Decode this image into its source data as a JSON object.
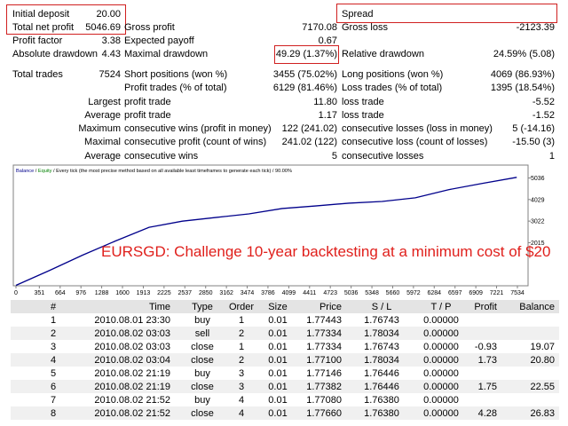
{
  "stats": [
    [
      {
        "label": "Initial deposit",
        "value": "20.00"
      },
      null,
      {
        "label": "Spread"
      }
    ],
    [
      {
        "label": "Total net profit",
        "value": "5046.69"
      },
      {
        "label": "Gross profit",
        "value": "7170.08"
      },
      {
        "label": "Gross loss",
        "value": "-2123.39"
      }
    ],
    [
      {
        "label": "Profit factor",
        "value": "3.38"
      },
      {
        "label": "Expected payoff",
        "value": "0.67"
      },
      null
    ],
    [
      {
        "label": "Absolute drawdown",
        "value": "4.43"
      },
      {
        "label": "Maximal drawdown",
        "value": "49.29 (1.37%)"
      },
      {
        "label": "Relative drawdown",
        "value": "24.59% (5.08)"
      }
    ],
    [
      {
        "label": "Total trades",
        "value": "7524"
      },
      {
        "label": "Short positions (won %)",
        "value": "3455 (75.02%)"
      },
      {
        "label": "Long positions (won %)",
        "value": "4069 (86.93%)"
      }
    ],
    [
      null,
      {
        "label": "Profit trades (% of total)",
        "value": "6129 (81.46%)"
      },
      {
        "label": "Loss trades (% of total)",
        "value": "1395 (18.54%)"
      }
    ],
    [
      {
        "label": "Largest"
      },
      {
        "label": "profit trade",
        "value": "11.80"
      },
      {
        "label": "loss trade",
        "value": "-5.52"
      }
    ],
    [
      {
        "label": "Average"
      },
      {
        "label": "profit trade",
        "value": "1.17"
      },
      {
        "label": "loss trade",
        "value": "-1.52"
      }
    ],
    [
      {
        "label": "Maximum"
      },
      {
        "label": "consecutive wins (profit in money)",
        "value": "122 (241.02)"
      },
      {
        "label": "consecutive losses (loss in money)",
        "value": "5 (-14.16)"
      }
    ],
    [
      {
        "label": "Maximal"
      },
      {
        "label": "consecutive profit (count of wins)",
        "value": "241.02 (122)"
      },
      {
        "label": "consecutive loss (count of losses)",
        "value": "-15.50 (3)"
      }
    ],
    [
      {
        "label": "Average"
      },
      {
        "label": "consecutive wins",
        "value": "5"
      },
      {
        "label": "consecutive losses",
        "value": "1"
      }
    ]
  ],
  "chart": {
    "type": "line",
    "legend": [
      "Balance",
      "Equity",
      "Every tick (the most precise method based on all available least timeframes to generate each tick)",
      "90.00%"
    ],
    "x": [
      0,
      500,
      1000,
      1500,
      2000,
      2500,
      3000,
      3500,
      4000,
      4500,
      5000,
      5500,
      6000,
      6500,
      7000,
      7524
    ],
    "values": [
      20,
      710,
      1430,
      2100,
      2730,
      3020,
      3190,
      3360,
      3610,
      3730,
      3860,
      3940,
      4110,
      4490,
      4780,
      5066.69
    ],
    "color": "#00008b",
    "xlim": [
      0,
      7534
    ],
    "xticks": [
      0,
      351,
      664,
      976,
      1288,
      1600,
      1913,
      2225,
      2537,
      2850,
      3162,
      3474,
      3786,
      4099,
      4411,
      4723,
      5036,
      5348,
      5660,
      5972,
      6284,
      6597,
      6909,
      7221,
      7534
    ],
    "ylim": [
      0,
      5640
    ],
    "yticks": [
      2015,
      3022,
      4029,
      5036
    ]
  },
  "overlay": "EURSGD: Challenge 10-year backtesting at a minimum cost of $20",
  "table": {
    "header": [
      "#",
      "Time",
      "Type",
      "Order",
      "Size",
      "Price",
      "S / L",
      "T / P",
      "Profit",
      "Balance"
    ],
    "rows": [
      [
        "1",
        "2010.08.01 23:30",
        "buy",
        "1",
        "0.01",
        "1.77443",
        "1.76743",
        "0.00000",
        null,
        null
      ],
      [
        "2",
        "2010.08.02 03:03",
        "sell",
        "2",
        "0.01",
        "1.77334",
        "1.78034",
        "0.00000",
        null,
        null
      ],
      [
        "3",
        "2010.08.02 03:03",
        "close",
        "1",
        "0.01",
        "1.77334",
        "1.76743",
        "0.00000",
        "-0.93",
        "19.07"
      ],
      [
        "4",
        "2010.08.02 03:04",
        "close",
        "2",
        "0.01",
        "1.77100",
        "1.78034",
        "0.00000",
        "1.73",
        "20.80"
      ],
      [
        "5",
        "2010.08.02 21:19",
        "buy",
        "3",
        "0.01",
        "1.77146",
        "1.76446",
        "0.00000",
        null,
        null
      ],
      [
        "6",
        "2010.08.02 21:19",
        "close",
        "3",
        "0.01",
        "1.77382",
        "1.76446",
        "0.00000",
        "1.75",
        "22.55"
      ],
      [
        "7",
        "2010.08.02 21:52",
        "buy",
        "4",
        "0.01",
        "1.77080",
        "1.76380",
        "0.00000",
        null,
        null
      ],
      [
        "8",
        "2010.08.02 21:52",
        "close",
        "4",
        "0.01",
        "1.77660",
        "1.76380",
        "0.00000",
        "4.28",
        "26.83"
      ]
    ]
  }
}
